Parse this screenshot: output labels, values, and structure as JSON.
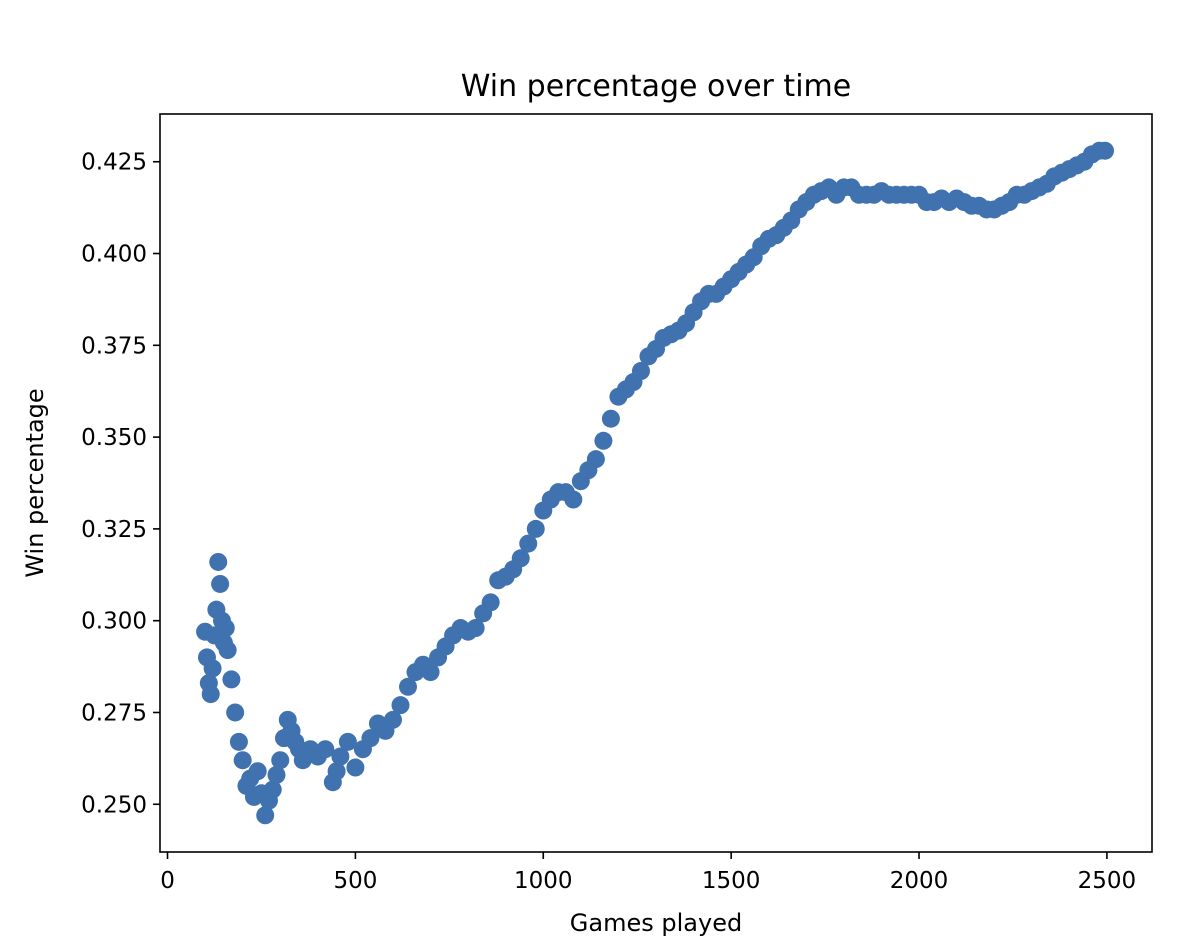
{
  "chart_data": {
    "type": "scatter",
    "title": "Win percentage over time",
    "xlabel": "Games played",
    "ylabel": "Win percentage",
    "xlim": [
      -20,
      2620
    ],
    "ylim": [
      0.237,
      0.438
    ],
    "xticks": [
      0,
      500,
      1000,
      1500,
      2000,
      2500
    ],
    "xtick_labels": [
      "0",
      "500",
      "1000",
      "1500",
      "2000",
      "2500"
    ],
    "yticks": [
      0.25,
      0.275,
      0.3,
      0.325,
      0.35,
      0.375,
      0.4,
      0.425
    ],
    "ytick_labels": [
      "0.250",
      "0.275",
      "0.300",
      "0.325",
      "0.350",
      "0.375",
      "0.400",
      "0.425"
    ],
    "grid": false,
    "marker_color": "#3f72af",
    "series": [
      {
        "x": [
          100,
          105,
          110,
          115,
          120,
          125,
          130,
          135,
          140,
          145,
          150,
          155,
          160,
          170,
          180,
          190,
          200,
          210,
          220,
          230,
          240,
          250,
          260,
          270,
          280,
          290,
          300,
          310,
          320,
          330,
          340,
          350,
          360,
          380,
          400,
          420,
          440,
          450,
          460,
          480,
          500,
          520,
          540,
          560,
          580,
          600,
          620,
          640,
          660,
          680,
          700,
          720,
          740,
          760,
          780,
          800,
          820,
          840,
          860,
          880,
          900,
          920,
          940,
          960,
          980,
          1000,
          1020,
          1040,
          1060,
          1080,
          1100,
          1120,
          1140,
          1160,
          1180,
          1200,
          1220,
          1240,
          1260,
          1280,
          1300,
          1320,
          1340,
          1360,
          1380,
          1400,
          1420,
          1440,
          1460,
          1480,
          1500,
          1520,
          1540,
          1560,
          1580,
          1600,
          1620,
          1640,
          1660,
          1680,
          1700,
          1720,
          1740,
          1760,
          1780,
          1800,
          1820,
          1840,
          1860,
          1880,
          1900,
          1920,
          1940,
          1960,
          1980,
          2000,
          2020,
          2040,
          2060,
          2080,
          2100,
          2120,
          2140,
          2160,
          2180,
          2200,
          2220,
          2240,
          2260,
          2280,
          2300,
          2320,
          2340,
          2360,
          2380,
          2400,
          2420,
          2440,
          2460,
          2480,
          2495
        ],
        "y": [
          0.297,
          0.29,
          0.283,
          0.28,
          0.287,
          0.296,
          0.303,
          0.316,
          0.31,
          0.3,
          0.294,
          0.298,
          0.292,
          0.284,
          0.275,
          0.267,
          0.262,
          0.255,
          0.257,
          0.252,
          0.259,
          0.253,
          0.247,
          0.251,
          0.254,
          0.258,
          0.262,
          0.268,
          0.273,
          0.27,
          0.267,
          0.265,
          0.262,
          0.265,
          0.263,
          0.265,
          0.256,
          0.259,
          0.263,
          0.267,
          0.26,
          0.265,
          0.268,
          0.272,
          0.27,
          0.273,
          0.277,
          0.282,
          0.286,
          0.288,
          0.286,
          0.29,
          0.293,
          0.296,
          0.298,
          0.297,
          0.298,
          0.302,
          0.305,
          0.311,
          0.312,
          0.314,
          0.317,
          0.321,
          0.325,
          0.33,
          0.333,
          0.335,
          0.335,
          0.333,
          0.338,
          0.341,
          0.344,
          0.349,
          0.355,
          0.361,
          0.363,
          0.365,
          0.368,
          0.372,
          0.374,
          0.377,
          0.378,
          0.379,
          0.381,
          0.384,
          0.387,
          0.389,
          0.389,
          0.391,
          0.393,
          0.395,
          0.397,
          0.399,
          0.402,
          0.404,
          0.405,
          0.407,
          0.409,
          0.412,
          0.414,
          0.416,
          0.417,
          0.418,
          0.416,
          0.418,
          0.418,
          0.416,
          0.416,
          0.416,
          0.417,
          0.416,
          0.416,
          0.416,
          0.416,
          0.416,
          0.414,
          0.414,
          0.415,
          0.414,
          0.415,
          0.414,
          0.413,
          0.413,
          0.412,
          0.412,
          0.413,
          0.414,
          0.416,
          0.416,
          0.417,
          0.418,
          0.419,
          0.421,
          0.422,
          0.423,
          0.424,
          0.425,
          0.427,
          0.428,
          0.428
        ]
      }
    ]
  }
}
